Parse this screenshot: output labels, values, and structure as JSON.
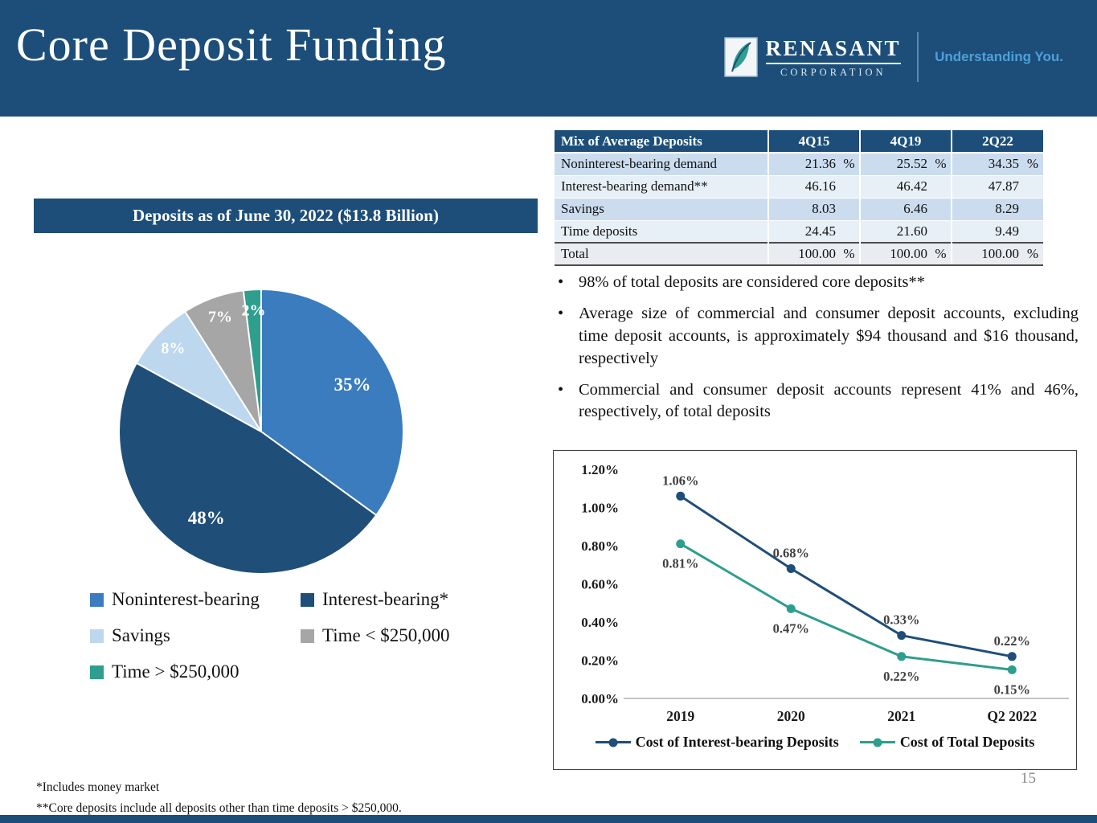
{
  "colors": {
    "header_bg": "#1C4E79",
    "accent_navy": "#1F4E79",
    "accent_blue": "#3A7CBE",
    "accent_light_blue": "#BDD7EE",
    "accent_gray": "#A6A6A6",
    "accent_teal": "#2E9E8E",
    "tagline_blue": "#4FA0D9"
  },
  "header": {
    "title": "Core Deposit Funding",
    "logo": {
      "name": "RENASANT",
      "sub": "CORPORATION",
      "tagline": "Understanding You."
    }
  },
  "deposits_table": {
    "title": "Mix of Average Deposits",
    "columns": [
      "4Q15",
      "4Q19",
      "2Q22"
    ],
    "rows": [
      {
        "label": "Noninterest-bearing demand",
        "values": [
          "21.36",
          "25.52",
          "34.35"
        ],
        "pct": true,
        "total": false
      },
      {
        "label": "Interest-bearing demand**",
        "values": [
          "46.16",
          "46.42",
          "47.87"
        ],
        "pct": false,
        "total": false
      },
      {
        "label": "Savings",
        "values": [
          "8.03",
          "6.46",
          "8.29"
        ],
        "pct": false,
        "total": false
      },
      {
        "label": "Time deposits",
        "values": [
          "24.45",
          "21.60",
          "9.49"
        ],
        "pct": false,
        "total": false
      },
      {
        "label": "Total",
        "values": [
          "100.00",
          "100.00",
          "100.00"
        ],
        "pct": true,
        "total": true
      }
    ]
  },
  "banner": {
    "text": "Deposits as of June 30, 2022 ($13.8 Billion)"
  },
  "bullets": [
    "98% of total deposits are considered core deposits**",
    "Average size of commercial and consumer deposit accounts, excluding time deposit accounts, is approximately $94 thousand and $16 thousand, respectively",
    "Commercial and consumer deposit accounts represent 41% and 46%, respectively, of total deposits"
  ],
  "chart_data": [
    {
      "type": "pie",
      "title": "Deposits as of June 30, 2022 ($13.8 Billion)",
      "labels": [
        "Noninterest-bearing",
        "Interest-bearing*",
        "Savings",
        "Time < $250,000",
        "Time > $250,000"
      ],
      "values": [
        35,
        48,
        8,
        7,
        2
      ],
      "display_labels": [
        "35%",
        "48%",
        "8%",
        "7%",
        "2%"
      ],
      "colors": [
        "#3A7CBE",
        "#1F4E79",
        "#BDD7EE",
        "#A6A6A6",
        "#2E9E8E"
      ],
      "legend_position": "bottom"
    },
    {
      "type": "line",
      "categories": [
        "2019",
        "2020",
        "2021",
        "Q2 2022"
      ],
      "series": [
        {
          "name": "Cost of Interest-bearing Deposits",
          "values": [
            1.06,
            0.68,
            0.33,
            0.22
          ],
          "color": "#1F4E79"
        },
        {
          "name": "Cost of Total Deposits",
          "values": [
            0.81,
            0.47,
            0.22,
            0.15
          ],
          "color": "#2E9E8E"
        }
      ],
      "ylim": [
        0,
        1.2
      ],
      "ytick_step": 0.2,
      "ytick_labels": [
        "0.00%",
        "0.20%",
        "0.40%",
        "0.60%",
        "0.80%",
        "1.00%",
        "1.20%"
      ],
      "grid": false,
      "legend_position": "bottom"
    }
  ],
  "footnotes": [
    "*Includes money market",
    "**Core deposits include all deposits other than time deposits > $250,000."
  ],
  "page_number": "15"
}
